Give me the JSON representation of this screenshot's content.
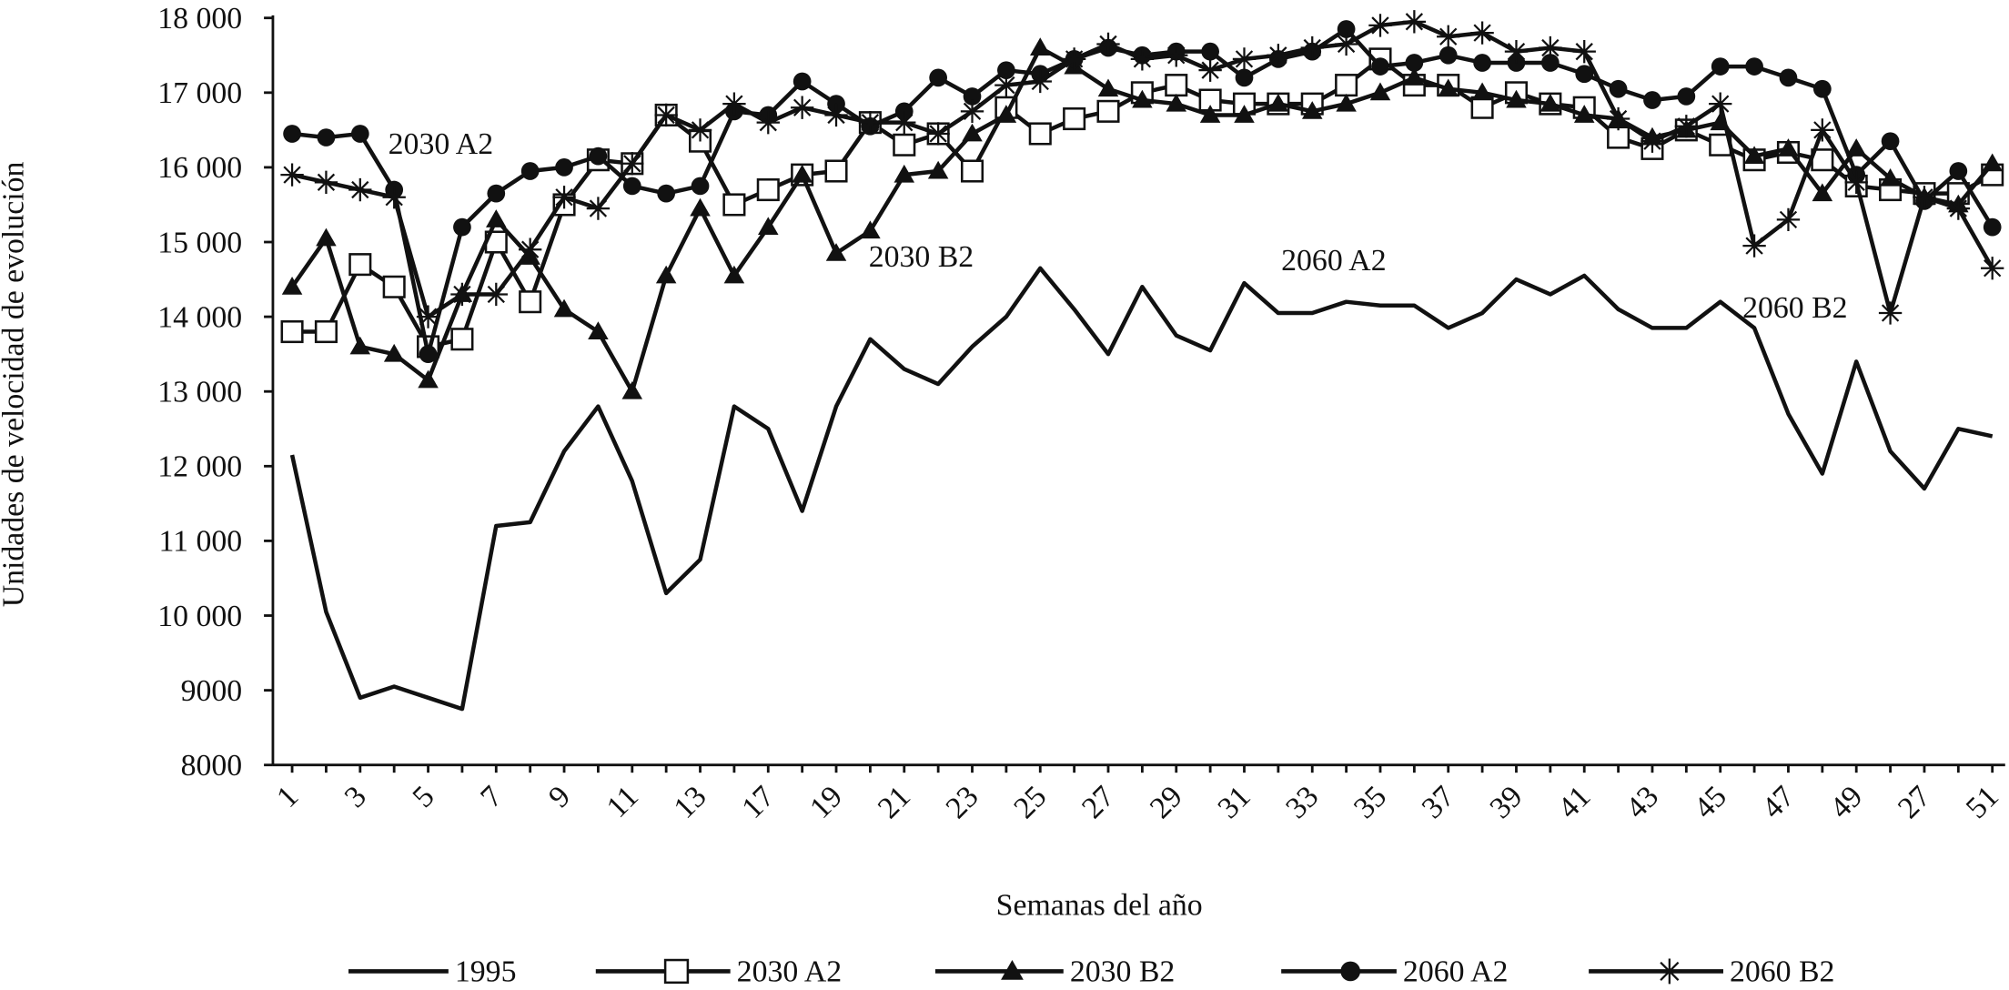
{
  "chart_data": {
    "type": "line",
    "x_label": "Semanas del año",
    "y_label": "Unidades de velocidad de evolución",
    "categories": [
      "1",
      null,
      "3",
      null,
      "5",
      null,
      "7",
      null,
      "9",
      null,
      "11",
      null,
      "13",
      null,
      "17",
      null,
      "19",
      null,
      "21",
      null,
      "23",
      null,
      "25",
      null,
      "27",
      null,
      "29",
      null,
      "31",
      null,
      "33",
      null,
      "35",
      null,
      "37",
      null,
      "39",
      null,
      "41",
      null,
      "43",
      null,
      "45",
      null,
      "47",
      null,
      "49",
      null,
      "27",
      null,
      "51"
    ],
    "ylim": [
      8000,
      18000
    ],
    "yticks": [
      {
        "value": 18000,
        "label": "18 000"
      },
      {
        "value": 17000,
        "label": "17 000"
      },
      {
        "value": 16000,
        "label": "16 000"
      },
      {
        "value": 15000,
        "label": "15 000"
      },
      {
        "value": 14000,
        "label": "14 000"
      },
      {
        "value": 13000,
        "label": "13 000"
      },
      {
        "value": 12000,
        "label": "12 000"
      },
      {
        "value": 11000,
        "label": "11 000"
      },
      {
        "value": 10000,
        "label": "10 000"
      },
      9000,
      8000
    ],
    "annotations": [
      "2030 A2",
      "2030 B2",
      "2060 A2",
      "2060 B2"
    ],
    "series": [
      {
        "name": "1995",
        "color": "#111111",
        "marker": "none",
        "values": [
          12150,
          10050,
          8900,
          9050,
          8900,
          8750,
          11200,
          11250,
          12200,
          12800,
          11800,
          10300,
          10750,
          12800,
          12500,
          11400,
          12800,
          13700,
          13300,
          13100,
          13600,
          14000,
          14650,
          14100,
          13500,
          14400,
          13750,
          13550,
          14450,
          14050,
          14050,
          14200,
          14150,
          14150,
          13850,
          14050,
          14500,
          14300,
          14550,
          14100,
          13850,
          13850,
          14200,
          13850,
          12700,
          11900,
          13400,
          12200,
          11700,
          12500,
          12400
        ]
      },
      {
        "name": "2030 A2",
        "color": "#111111",
        "marker": "square",
        "values": [
          13800,
          13800,
          14700,
          14400,
          13600,
          13700,
          15000,
          14200,
          15500,
          16100,
          16050,
          16700,
          16350,
          15500,
          15700,
          15900,
          15950,
          16600,
          16300,
          16450,
          15950,
          16800,
          16450,
          16650,
          16750,
          17000,
          17100,
          16900,
          16850,
          16850,
          16850,
          17100,
          17450,
          17100,
          17100,
          16800,
          17000,
          16850,
          16800,
          16400,
          16250,
          16500,
          16300,
          16100,
          16200,
          16100,
          15750,
          15700,
          15650,
          15650,
          15900
        ]
      },
      {
        "name": "2030 B2",
        "color": "#111111",
        "marker": "triangle",
        "values": [
          14400,
          15050,
          13600,
          13500,
          13150,
          14300,
          15300,
          14800,
          14100,
          13800,
          13000,
          14550,
          15450,
          14550,
          15200,
          15900,
          14850,
          15150,
          15900,
          15950,
          16450,
          16700,
          17600,
          17350,
          17050,
          16900,
          16850,
          16700,
          16700,
          16850,
          16750,
          16850,
          17000,
          17200,
          17050,
          17000,
          16900,
          16850,
          16700,
          16650,
          16400,
          16500,
          16600,
          16150,
          16250,
          15650,
          16250,
          15850,
          15600,
          15500,
          16050
        ]
      },
      {
        "name": "2060 A2",
        "color": "#111111",
        "marker": "circle",
        "values": [
          16450,
          16400,
          16450,
          15700,
          13500,
          15200,
          15650,
          15950,
          16000,
          16150,
          15750,
          15650,
          15750,
          16750,
          16700,
          17150,
          16850,
          16550,
          16750,
          17200,
          16950,
          17300,
          17250,
          17450,
          17600,
          17500,
          17550,
          17550,
          17200,
          17450,
          17550,
          17850,
          17350,
          17400,
          17500,
          17400,
          17400,
          17400,
          17250,
          17050,
          16900,
          16950,
          17350,
          17350,
          17200,
          17050,
          15900,
          16350,
          15550,
          15950,
          15200
        ]
      },
      {
        "name": "2060 B2",
        "color": "#111111",
        "marker": "star",
        "values": [
          15900,
          15800,
          15700,
          15600,
          14000,
          14300,
          14300,
          14900,
          15600,
          15450,
          16050,
          16700,
          16500,
          16850,
          16600,
          16800,
          16700,
          16600,
          16600,
          16450,
          16750,
          17100,
          17150,
          17450,
          17650,
          17450,
          17500,
          17300,
          17450,
          17500,
          17600,
          17650,
          17900,
          17950,
          17750,
          17800,
          17550,
          17600,
          17550,
          16650,
          16350,
          16550,
          16850,
          14950,
          15300,
          16500,
          15800,
          14050,
          15600,
          15450,
          14650
        ]
      }
    ]
  }
}
